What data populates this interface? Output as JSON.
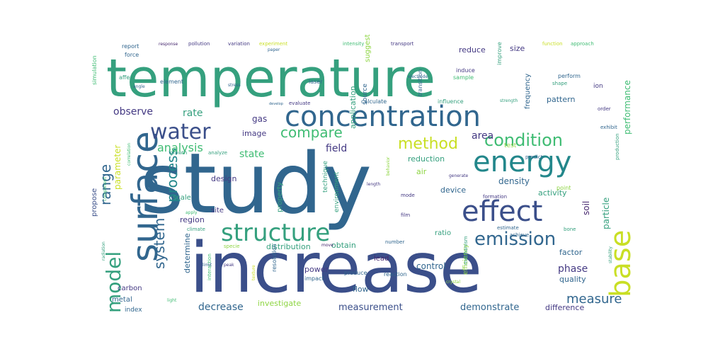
{
  "palette": {
    "teal": "#35A07E",
    "blue": "#31668E",
    "navy": "#3B4F8A",
    "indigo": "#443983",
    "green": "#3FBC73",
    "lime": "#8ED543",
    "yellow": "#C9DF25",
    "purple": "#46276E",
    "cyan": "#23878B",
    "slate": "#4A6FA0"
  },
  "words": [
    {
      "text": "study",
      "color": "blue"
    },
    {
      "text": "temperature",
      "color": "teal"
    },
    {
      "text": "increase",
      "color": "navy"
    },
    {
      "text": "concentration",
      "color": "blue"
    },
    {
      "text": "surface",
      "color": "blue"
    },
    {
      "text": "energy",
      "color": "cyan"
    },
    {
      "text": "effect",
      "color": "navy"
    },
    {
      "text": "structure",
      "color": "teal"
    },
    {
      "text": "base",
      "color": "yellow"
    },
    {
      "text": "model",
      "color": "teal"
    },
    {
      "text": "water",
      "color": "navy"
    },
    {
      "text": "emission",
      "color": "blue"
    },
    {
      "text": "condition",
      "color": "green"
    },
    {
      "text": "method",
      "color": "yellow"
    },
    {
      "text": "compare",
      "color": "green"
    },
    {
      "text": "range",
      "color": "blue"
    },
    {
      "text": "process",
      "color": "cyan"
    },
    {
      "text": "system",
      "color": "blue"
    },
    {
      "text": "measure",
      "color": "blue"
    },
    {
      "text": "observe",
      "color": "indigo"
    },
    {
      "text": "analysis",
      "color": "green"
    },
    {
      "text": "decrease",
      "color": "blue"
    },
    {
      "text": "phase",
      "color": "indigo"
    },
    {
      "text": "measurement",
      "color": "navy"
    },
    {
      "text": "demonstrate",
      "color": "blue"
    },
    {
      "text": "investigate",
      "color": "lime"
    },
    {
      "text": "performance",
      "color": "green"
    },
    {
      "text": "state",
      "color": "green"
    },
    {
      "text": "rate",
      "color": "teal"
    },
    {
      "text": "area",
      "color": "indigo"
    },
    {
      "text": "field",
      "color": "indigo"
    },
    {
      "text": "parameter",
      "color": "yellow"
    },
    {
      "text": "density",
      "color": "blue"
    },
    {
      "text": "particle",
      "color": "teal"
    },
    {
      "text": "soil",
      "color": "purple"
    },
    {
      "text": "gas",
      "color": "indigo"
    },
    {
      "text": "image",
      "color": "indigo"
    },
    {
      "text": "application",
      "color": "teal"
    },
    {
      "text": "source",
      "color": "blue"
    },
    {
      "text": "distribution",
      "color": "teal"
    },
    {
      "text": "control",
      "color": "blue"
    },
    {
      "text": "ratio",
      "color": "teal"
    },
    {
      "text": "factor",
      "color": "blue"
    },
    {
      "text": "obtain",
      "color": "teal"
    },
    {
      "text": "power",
      "color": "indigo"
    },
    {
      "text": "lead",
      "color": "purple"
    },
    {
      "text": "flow",
      "color": "blue"
    },
    {
      "text": "quality",
      "color": "blue"
    },
    {
      "text": "difference",
      "color": "indigo"
    },
    {
      "text": "determine",
      "color": "blue"
    },
    {
      "text": "activity",
      "color": "teal"
    },
    {
      "text": "device",
      "color": "blue"
    },
    {
      "text": "reduction",
      "color": "teal"
    },
    {
      "text": "design",
      "color": "indigo"
    },
    {
      "text": "region",
      "color": "indigo"
    },
    {
      "text": "site",
      "color": "indigo"
    },
    {
      "text": "scale",
      "color": "teal"
    },
    {
      "text": "property",
      "color": "teal"
    },
    {
      "text": "environment",
      "color": "teal"
    },
    {
      "text": "propose",
      "color": "navy"
    },
    {
      "text": "reduce",
      "color": "indigo"
    },
    {
      "text": "size",
      "color": "indigo"
    },
    {
      "text": "pattern",
      "color": "blue"
    },
    {
      "text": "frequency",
      "color": "blue"
    },
    {
      "text": "suggest",
      "color": "lime"
    },
    {
      "text": "technique",
      "color": "teal"
    },
    {
      "text": "air",
      "color": "lime"
    },
    {
      "text": "metal",
      "color": "blue"
    },
    {
      "text": "carbon",
      "color": "indigo"
    },
    {
      "text": "efficiency",
      "color": "lime"
    },
    {
      "text": "index",
      "color": "blue"
    },
    {
      "text": "test",
      "color": "lime"
    },
    {
      "text": "report",
      "color": "blue"
    },
    {
      "text": "pollution",
      "color": "indigo"
    },
    {
      "text": "variation",
      "color": "indigo"
    },
    {
      "text": "experiment",
      "color": "yellow"
    },
    {
      "text": "intensity",
      "color": "green"
    },
    {
      "text": "transport",
      "color": "indigo"
    },
    {
      "text": "function",
      "color": "yellow"
    },
    {
      "text": "approach",
      "color": "green"
    },
    {
      "text": "improve",
      "color": "teal"
    },
    {
      "text": "induce",
      "color": "indigo"
    },
    {
      "text": "perform",
      "color": "blue"
    },
    {
      "text": "force",
      "color": "blue"
    },
    {
      "text": "affect",
      "color": "teal"
    },
    {
      "text": "simulation",
      "color": "green"
    },
    {
      "text": "element",
      "color": "blue"
    },
    {
      "text": "angle",
      "color": "blue"
    },
    {
      "text": "sample",
      "color": "green"
    },
    {
      "text": "laser",
      "color": "blue"
    },
    {
      "text": "ion",
      "color": "indigo"
    },
    {
      "text": "shape",
      "color": "teal"
    },
    {
      "text": "transition",
      "color": "blue"
    },
    {
      "text": "influence",
      "color": "teal"
    },
    {
      "text": "calculate",
      "color": "blue"
    },
    {
      "text": "evaluate",
      "color": "indigo"
    },
    {
      "text": "develop",
      "color": "blue"
    },
    {
      "text": "growth",
      "color": "teal"
    },
    {
      "text": "analyze",
      "color": "teal"
    },
    {
      "text": "exhibit",
      "color": "blue"
    },
    {
      "text": "order",
      "color": "indigo"
    },
    {
      "text": "mode",
      "color": "indigo"
    },
    {
      "text": "formation",
      "color": "indigo"
    },
    {
      "text": "production",
      "color": "teal"
    },
    {
      "text": "stability",
      "color": "teal"
    },
    {
      "text": "estimate",
      "color": "blue"
    },
    {
      "text": "achieve",
      "color": "blue"
    },
    {
      "text": "film",
      "color": "indigo"
    },
    {
      "text": "number",
      "color": "blue"
    },
    {
      "text": "reaction",
      "color": "blue"
    },
    {
      "text": "impact",
      "color": "blue"
    },
    {
      "text": "produce",
      "color": "blue"
    },
    {
      "text": "resolution",
      "color": "blue"
    },
    {
      "text": "move",
      "color": "purple"
    },
    {
      "text": "specie",
      "color": "lime"
    },
    {
      "text": "climate",
      "color": "teal"
    },
    {
      "text": "interaction",
      "color": "green"
    },
    {
      "text": "limit",
      "color": "blue"
    },
    {
      "text": "peak",
      "color": "indigo"
    },
    {
      "text": "mechanism",
      "color": "teal"
    },
    {
      "text": "crystal",
      "color": "lime"
    },
    {
      "text": "stress",
      "color": "blue"
    },
    {
      "text": "apply",
      "color": "green"
    },
    {
      "text": "point",
      "color": "lime"
    },
    {
      "text": "bone",
      "color": "teal"
    },
    {
      "text": "predict",
      "color": "blue"
    },
    {
      "text": "generate",
      "color": "indigo"
    },
    {
      "text": "strength",
      "color": "teal"
    },
    {
      "text": "component",
      "color": "green"
    },
    {
      "text": "radiation",
      "color": "teal"
    },
    {
      "text": "correlation",
      "color": "green"
    },
    {
      "text": "length",
      "color": "indigo"
    },
    {
      "text": "electrode",
      "color": "blue"
    },
    {
      "text": "response",
      "color": "purple"
    },
    {
      "text": "paper",
      "color": "blue"
    },
    {
      "text": "light",
      "color": "green"
    },
    {
      "text": "behavior",
      "color": "lime"
    },
    {
      "text": "texture",
      "color": "yellow"
    }
  ]
}
